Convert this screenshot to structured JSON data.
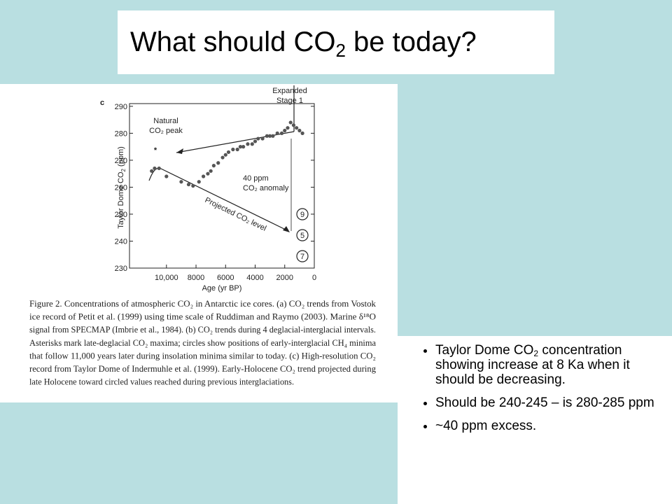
{
  "title": [
    "What should CO",
    "2",
    " be today?"
  ],
  "figure": {
    "chart_data": {
      "type": "scatter",
      "panel_label": "c",
      "x": [
        11000,
        10800,
        10500,
        10000,
        9000,
        8500,
        8200,
        7800,
        7500,
        7200,
        7000,
        6800,
        6500,
        6200,
        6000,
        5800,
        5500,
        5200,
        5000,
        4800,
        4500,
        4200,
        4000,
        3800,
        3500,
        3200,
        3000,
        2800,
        2500,
        2200,
        2000,
        1800,
        1600,
        1400,
        1200,
        1000,
        800
      ],
      "values": [
        266,
        267,
        267,
        264,
        262,
        261,
        260.5,
        262,
        264,
        265,
        266,
        268,
        269,
        271,
        272,
        273,
        274,
        274,
        275,
        275,
        276,
        276,
        277,
        278,
        278,
        279,
        279,
        279,
        280,
        280,
        281,
        282,
        284,
        283,
        282,
        281,
        280
      ],
      "color": "#555555",
      "xlim": [
        12500,
        0
      ],
      "ylim": [
        230,
        291
      ],
      "xticks": [
        {
          "value": 10000,
          "label": "10,000"
        },
        8000,
        6000,
        4000,
        2000,
        0
      ],
      "yticks": [
        230,
        240,
        250,
        260,
        270,
        280,
        290
      ],
      "x_label": "Age (yr BP)",
      "y_label": [
        "Taylor Dome CO",
        "2",
        " (ppm)"
      ],
      "annotations": {
        "natural_peak": [
          "Natural",
          "CO₂ peak"
        ],
        "asterisk": "*",
        "expanded": [
          "Expanded",
          "Stage 1"
        ],
        "anomaly": [
          "40 ppm",
          "CO₂ anomaly"
        ],
        "projected": "Projected CO₂ level",
        "circles": [
          "9",
          "5",
          "7"
        ]
      }
    },
    "caption": [
      "Figure 2. Concentrations of atmospheric CO₂ in Antarctic ice cores. (a) CO₂ trends from Vostok",
      "ice record of Petit et al. (1999) using time scale of Ruddiman and Raymo (2003). Marine δ¹⁸O",
      "signal from SPECMAP (Imbrie et al., 1984). (b) CO₂ trends during 4 deglacial-interglacial intervals.",
      "Asterisks mark late-deglacial CO₂ maxima; circles show positions of early-interglacial CH₄ minima",
      "that follow 11,000 years later during insolation minima similar to today. (c) High-resolution CO₂",
      "record from Taylor Dome of Indermuhle et al. (1999). Early-Holocene CO₂ trend projected during",
      "late Holocene toward circled values reached during previous interglaciations."
    ]
  },
  "bullets": [
    [
      "Taylor Dome CO",
      "2",
      " concentration showing increase at 8 Ka when it should be decreasing."
    ],
    [
      "Should be 240-245 – is 280-285 ppm"
    ],
    [
      "~40 ppm excess."
    ]
  ]
}
